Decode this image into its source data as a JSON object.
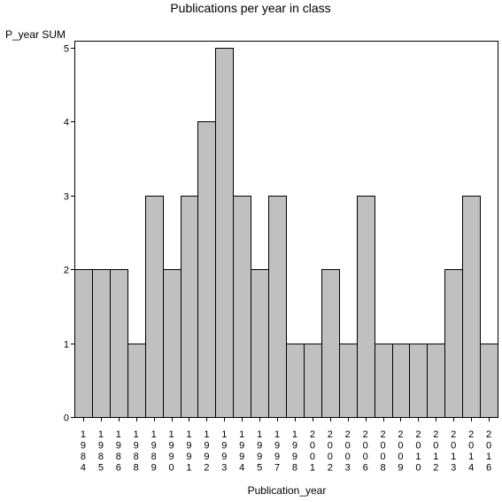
{
  "chart_data": {
    "type": "bar",
    "title": "Publications per year in class",
    "ylabel": "P_year SUM",
    "xlabel": "Publication_year",
    "categories": [
      "1984",
      "1985",
      "1986",
      "1988",
      "1989",
      "1990",
      "1991",
      "1992",
      "1993",
      "1994",
      "1995",
      "1997",
      "1998",
      "2001",
      "2002",
      "2003",
      "2006",
      "2008",
      "2009",
      "2010",
      "2012",
      "2013",
      "2014",
      "2016"
    ],
    "values": [
      2,
      2,
      2,
      1,
      3,
      2,
      3,
      4,
      5,
      3,
      2,
      3,
      1,
      1,
      2,
      1,
      3,
      1,
      1,
      1,
      1,
      2,
      3,
      1
    ],
    "ylim": [
      0,
      5
    ],
    "yticks": [
      "0",
      "1",
      "2",
      "3",
      "4",
      "5"
    ],
    "grid": false,
    "bar_color": "#c0c0c0"
  }
}
